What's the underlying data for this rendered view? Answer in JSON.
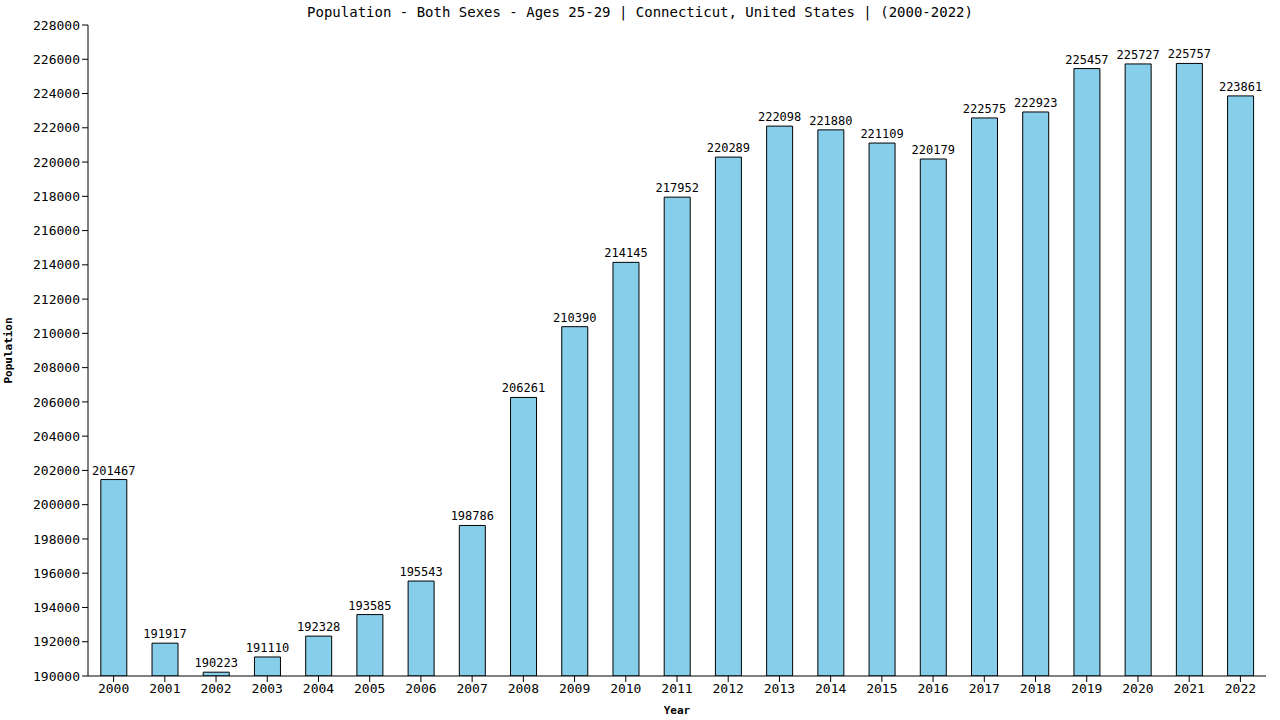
{
  "chart_data": {
    "type": "bar",
    "title": "Population - Both Sexes - Ages 25-29 | Connecticut, United States | (2000-2022)",
    "x_label": "Year",
    "y_label": "Population",
    "categories": [
      "2000",
      "2001",
      "2002",
      "2003",
      "2004",
      "2005",
      "2006",
      "2007",
      "2008",
      "2009",
      "2010",
      "2011",
      "2012",
      "2013",
      "2014",
      "2015",
      "2016",
      "2017",
      "2018",
      "2019",
      "2020",
      "2021",
      "2022"
    ],
    "values": [
      201467,
      191917,
      190223,
      191110,
      192328,
      193585,
      195543,
      198786,
      206261,
      210390,
      214145,
      217952,
      220289,
      222098,
      221880,
      221109,
      220179,
      222575,
      222923,
      225457,
      225727,
      225757,
      223861
    ],
    "color": "#87ceeb",
    "ylim": [
      190000,
      228000
    ],
    "yticks": [
      190000,
      192000,
      194000,
      196000,
      198000,
      200000,
      202000,
      204000,
      206000,
      208000,
      210000,
      212000,
      214000,
      216000,
      218000,
      220000,
      222000,
      224000,
      226000,
      228000
    ],
    "grid": false,
    "data_labels": true
  }
}
